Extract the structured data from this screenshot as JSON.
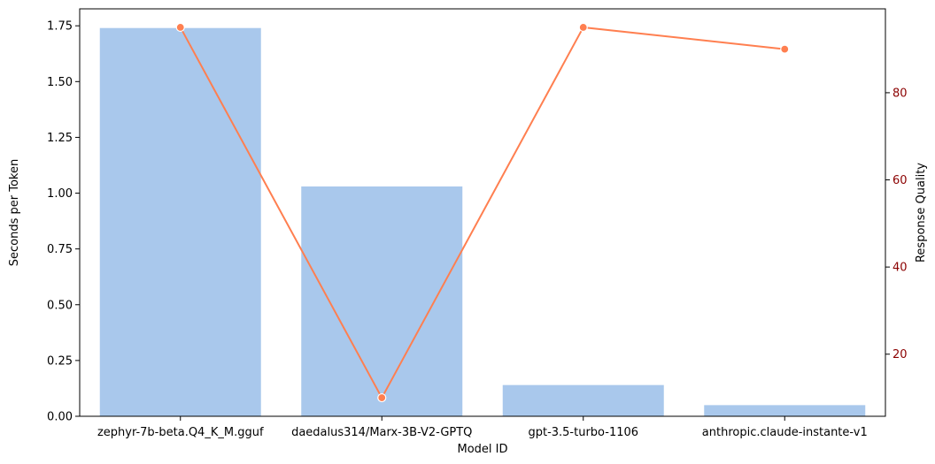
{
  "chart_data": {
    "type": "bar",
    "categories": [
      "zephyr-7b-beta.Q4_K_M.gguf",
      "daedalus314/Marx-3B-V2-GPTQ",
      "gpt-3.5-turbo-1106",
      "anthropic.claude-instante-v1"
    ],
    "series": [
      {
        "axis": "left",
        "type": "bar",
        "values": [
          1.74,
          1.03,
          0.14,
          0.05
        ],
        "color": "#a9c8ec"
      },
      {
        "axis": "right",
        "type": "line",
        "values": [
          95,
          10,
          95,
          90
        ],
        "color": "#ff7f50"
      }
    ],
    "xlabel": "Model ID",
    "ylabel": "Seconds per Token",
    "y2label": "Response Quality",
    "ylim": [
      0,
      1.826
    ],
    "y2lim": [
      5.75,
      99.25
    ],
    "yticks": [
      0.0,
      0.25,
      0.5,
      0.75,
      1.0,
      1.25,
      1.5,
      1.75
    ],
    "ytick_labels": [
      "0.00",
      "0.25",
      "0.50",
      "0.75",
      "1.00",
      "1.25",
      "1.50",
      "1.75"
    ],
    "y2ticks": [
      20,
      40,
      60,
      80
    ],
    "y2tick_labels": [
      "20",
      "40",
      "60",
      "80"
    ],
    "y2_color": "#8b0000",
    "grid": false
  }
}
